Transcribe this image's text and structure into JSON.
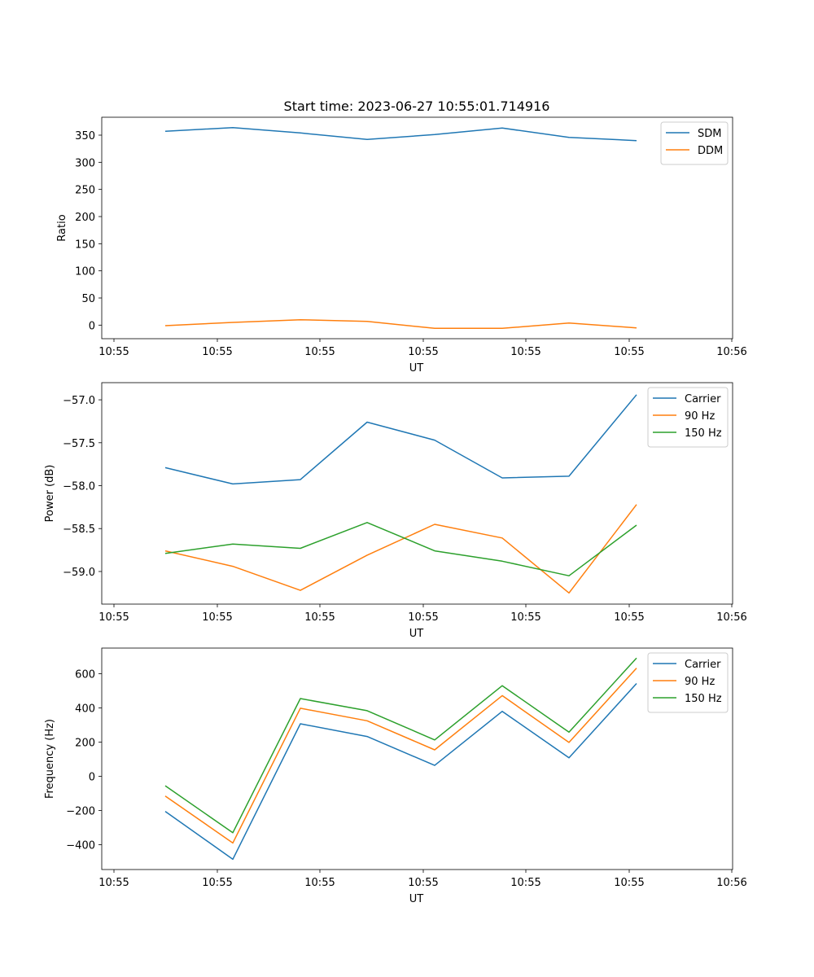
{
  "figure_title": "Start time: 2023-06-27 10:55:01.714916",
  "colors": {
    "blue": "#1f77b4",
    "orange": "#ff7f0e",
    "green": "#2ca02c"
  },
  "chart_data": [
    {
      "type": "line",
      "title": "Start time: 2023-06-27 10:55:01.714916",
      "xlabel": "UT",
      "ylabel": "Ratio",
      "x_tick_labels": [
        "10:55",
        "10:55",
        "10:55",
        "10:55",
        "10:55",
        "10:55",
        "10:56"
      ],
      "y_ticks": [
        0,
        50,
        100,
        150,
        200,
        250,
        300,
        350
      ],
      "ylim": [
        -25,
        383
      ],
      "grid": false,
      "legend_position": "top-right",
      "series": [
        {
          "name": "SDM",
          "color": "#1f77b4",
          "values": [
            357,
            364,
            354,
            342,
            351,
            363,
            346,
            340
          ]
        },
        {
          "name": "DDM",
          "color": "#ff7f0e",
          "values": [
            -1,
            5,
            10,
            7,
            -6,
            -6,
            4,
            -5
          ]
        }
      ]
    },
    {
      "type": "line",
      "title": "",
      "xlabel": "UT",
      "ylabel": "Power (dB)",
      "x_tick_labels": [
        "10:55",
        "10:55",
        "10:55",
        "10:55",
        "10:55",
        "10:55",
        "10:56"
      ],
      "y_ticks": [
        -59.0,
        -58.5,
        -58.0,
        -57.5,
        -57.0
      ],
      "y_tick_labels": [
        "−59.0",
        "−58.5",
        "−58.0",
        "−57.5",
        "−57.0"
      ],
      "ylim": [
        -59.38,
        -56.8
      ],
      "grid": false,
      "legend_position": "top-right",
      "series": [
        {
          "name": "Carrier",
          "color": "#1f77b4",
          "values": [
            -57.79,
            -57.98,
            -57.93,
            -57.26,
            -57.47,
            -57.91,
            -57.89,
            -56.94
          ]
        },
        {
          "name": "90 Hz",
          "color": "#ff7f0e",
          "values": [
            -58.76,
            -58.94,
            -59.22,
            -58.81,
            -58.45,
            -58.61,
            -59.25,
            -58.22
          ]
        },
        {
          "name": "150 Hz",
          "color": "#2ca02c",
          "values": [
            -58.79,
            -58.68,
            -58.73,
            -58.43,
            -58.76,
            -58.88,
            -59.05,
            -58.46
          ]
        }
      ]
    },
    {
      "type": "line",
      "title": "",
      "xlabel": "UT",
      "ylabel": "Frequency (Hz)",
      "x_tick_labels": [
        "10:55",
        "10:55",
        "10:55",
        "10:55",
        "10:55",
        "10:55",
        "10:56"
      ],
      "y_ticks": [
        -400,
        -200,
        0,
        200,
        400,
        600
      ],
      "y_tick_labels": [
        "−400",
        "−200",
        "0",
        "200",
        "400",
        "600"
      ],
      "ylim": [
        -545,
        750
      ],
      "grid": false,
      "legend_position": "top-right",
      "series": [
        {
          "name": "Carrier",
          "color": "#1f77b4",
          "values": [
            -205,
            -485,
            307,
            233,
            64,
            380,
            108,
            543
          ]
        },
        {
          "name": "90 Hz",
          "color": "#ff7f0e",
          "values": [
            -115,
            -390,
            398,
            325,
            155,
            472,
            198,
            633
          ]
        },
        {
          "name": "150 Hz",
          "color": "#2ca02c",
          "values": [
            -55,
            -330,
            455,
            384,
            213,
            530,
            258,
            692
          ]
        }
      ]
    }
  ]
}
